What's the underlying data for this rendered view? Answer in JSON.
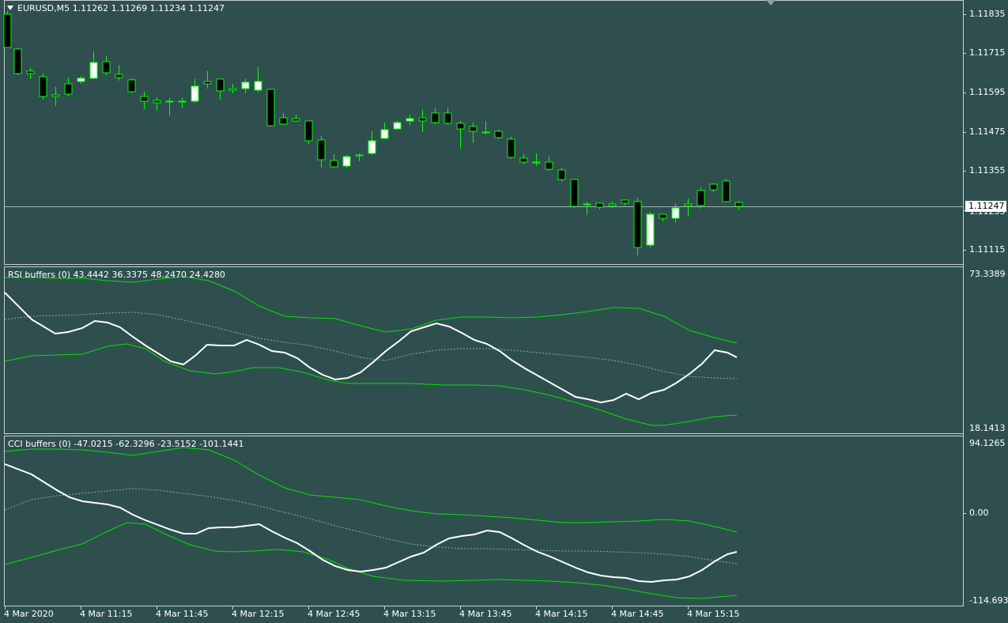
{
  "chart": {
    "symbol_header": "EURUSD,M5  1.11262 1.11269 1.11234 1.11247",
    "current_price": "1.11247",
    "price_axis": [
      "1.11835",
      "1.11715",
      "1.11595",
      "1.11475",
      "1.11355",
      "1.11235",
      "1.11115"
    ],
    "time_axis": [
      "4 Mar 2020",
      "4 Mar 11:15",
      "4 Mar 11:45",
      "4 Mar 12:15",
      "4 Mar 12:45",
      "4 Mar 13:15",
      "4 Mar 13:45",
      "4 Mar 14:15",
      "4 Mar 14:45",
      "4 Mar 15:15"
    ]
  },
  "rsi_pane": {
    "label": "RSI buffers (0) 43.4442 36.3375 48.2470 24.4280",
    "scale_max": "73.3389",
    "scale_min": "18.1413"
  },
  "cci_pane": {
    "label": "CCI buffers (0) -47.0215 -62.3296 -23.5152 -101.1441",
    "scale_max": "94.1265",
    "scale_zero": "0.00",
    "scale_min": "-114.6933"
  },
  "colors": {
    "background": "#2F4F4F",
    "bull_candle": "#FFFFFF",
    "bear_candle": "#000000",
    "wick": "#00FF00",
    "band": "#00FF00",
    "main_line": "#FFFFFF",
    "signal_line": "#8FA6A6"
  }
}
